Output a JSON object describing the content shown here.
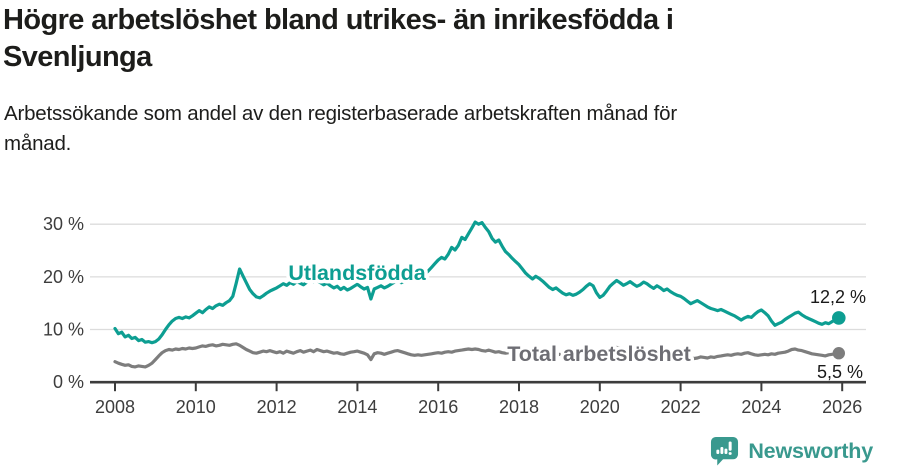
{
  "header": {
    "title": "Högre arbetslöshet bland utrikes- än inrikesfödda i Svenljunga",
    "title_lines": [
      "Högre arbetslöshet bland utrikes- än inrikesfödda i",
      "Svenljunga"
    ],
    "subtitle": "Arbetssökande som andel av den registerbaserade arbetskraften månad för månad.",
    "subtitle_lines": [
      "Arbetssökande som andel av den registerbaserade arbetskraften månad för",
      "månad."
    ]
  },
  "chart_data": {
    "type": "line",
    "title": "Högre arbetslöshet bland utrikes- än inrikesfödda i Svenljunga",
    "subtitle": "Arbetssökande som andel av den registerbaserade arbetskraften månad för månad.",
    "xlabel": "",
    "ylabel": "",
    "x_start_year": 2008,
    "points_per_year": 12,
    "x_tick_labels": [
      "2008",
      "2010",
      "2012",
      "2014",
      "2016",
      "2018",
      "2020",
      "2022",
      "2024",
      "2026"
    ],
    "y_ticks": [
      {
        "value": 0,
        "label": "0 %"
      },
      {
        "value": 10,
        "label": "10 %"
      },
      {
        "value": 20,
        "label": "20 %"
      },
      {
        "value": 30,
        "label": "30 %"
      }
    ],
    "ylim": [
      0,
      32
    ],
    "grid": "horizontal",
    "legend_position": "inline-labels",
    "axis_color": "#3c3c3c",
    "grid_color": "#dcdcdc",
    "tick_label_color": "#3d3d3d",
    "end_label_color": "#1a1a1a",
    "series": [
      {
        "name": "Utlandsfödda",
        "color": "#0d9e92",
        "end_label": "12,2 %",
        "end_value": 12.2,
        "values": [
          10.2,
          9.2,
          9.5,
          8.6,
          8.9,
          8.3,
          8.5,
          7.9,
          8.1,
          7.6,
          7.7,
          7.5,
          7.7,
          8.2,
          9.0,
          10.0,
          10.9,
          11.6,
          12.1,
          12.3,
          12.1,
          12.4,
          12.2,
          12.6,
          13.1,
          13.6,
          13.2,
          13.8,
          14.3,
          14.0,
          14.5,
          14.8,
          14.6,
          15.1,
          15.5,
          16.3,
          18.8,
          21.5,
          20.2,
          18.9,
          17.6,
          16.8,
          16.2,
          16.0,
          16.4,
          16.9,
          17.3,
          17.6,
          17.9,
          18.3,
          18.7,
          18.4,
          18.9,
          18.6,
          19.1,
          18.8,
          18.5,
          19.0,
          19.3,
          19.0,
          19.3,
          18.9,
          18.5,
          18.8,
          18.3,
          17.9,
          18.2,
          17.6,
          18.0,
          17.5,
          17.8,
          18.2,
          18.6,
          18.1,
          17.7,
          18.0,
          15.8,
          17.7,
          18.0,
          18.3,
          17.9,
          18.2,
          18.6,
          19.0,
          19.3,
          18.9,
          19.2,
          19.6,
          20.0,
          19.7,
          20.3,
          20.8,
          20.5,
          21.1,
          21.8,
          22.5,
          23.2,
          23.7,
          23.4,
          24.3,
          25.6,
          25.1,
          26.0,
          27.5,
          27.1,
          28.2,
          29.3,
          30.4,
          30.0,
          30.3,
          29.4,
          28.6,
          27.3,
          26.6,
          27.0,
          25.8,
          24.8,
          24.2,
          23.5,
          22.9,
          22.3,
          21.5,
          20.7,
          20.1,
          19.6,
          20.1,
          19.7,
          19.2,
          18.6,
          18.0,
          17.6,
          17.9,
          17.4,
          16.9,
          16.6,
          16.8,
          16.5,
          16.7,
          17.1,
          17.6,
          18.2,
          18.7,
          18.3,
          17.0,
          16.1,
          16.5,
          17.3,
          18.2,
          18.8,
          19.3,
          18.9,
          18.4,
          18.7,
          19.1,
          18.6,
          18.2,
          18.5,
          19.0,
          18.7,
          18.2,
          17.8,
          18.3,
          17.9,
          17.4,
          17.7,
          17.2,
          16.8,
          16.5,
          16.3,
          15.9,
          15.4,
          14.9,
          15.2,
          15.5,
          15.1,
          14.7,
          14.3,
          14.0,
          13.8,
          13.6,
          13.8,
          13.5,
          13.2,
          12.9,
          12.6,
          12.2,
          11.8,
          12.2,
          12.5,
          12.3,
          12.9,
          13.4,
          13.7,
          13.2,
          12.6,
          11.6,
          10.8,
          11.1,
          11.4,
          11.9,
          12.3,
          12.7,
          13.1,
          13.3,
          12.8,
          12.4,
          12.1,
          11.8,
          11.5,
          11.2,
          11.0,
          11.3,
          11.1,
          11.5,
          11.8,
          12.2
        ]
      },
      {
        "name": "Total arbetslöshet",
        "color": "#7d7d7d",
        "label_color": "#6e6e74",
        "end_label": "5,5 %",
        "end_value": 5.5,
        "values": [
          3.9,
          3.6,
          3.4,
          3.2,
          3.3,
          3.0,
          2.9,
          3.1,
          3.0,
          2.9,
          3.2,
          3.6,
          4.3,
          5.0,
          5.6,
          6.0,
          6.2,
          6.1,
          6.3,
          6.2,
          6.4,
          6.3,
          6.5,
          6.4,
          6.5,
          6.7,
          6.9,
          6.8,
          7.0,
          7.1,
          6.9,
          7.0,
          7.2,
          7.1,
          7.0,
          7.2,
          7.3,
          7.0,
          6.6,
          6.2,
          5.9,
          5.6,
          5.5,
          5.7,
          5.9,
          5.8,
          6.0,
          5.8,
          5.6,
          5.8,
          5.5,
          5.9,
          5.7,
          5.5,
          5.8,
          6.0,
          5.7,
          5.9,
          6.1,
          5.8,
          6.2,
          6.0,
          5.8,
          5.9,
          5.7,
          5.5,
          5.6,
          5.4,
          5.3,
          5.5,
          5.7,
          5.8,
          5.9,
          5.7,
          5.5,
          5.2,
          4.3,
          5.4,
          5.6,
          5.5,
          5.3,
          5.5,
          5.7,
          5.9,
          6.0,
          5.8,
          5.6,
          5.4,
          5.2,
          5.1,
          5.2,
          5.1,
          5.2,
          5.3,
          5.4,
          5.5,
          5.6,
          5.5,
          5.7,
          5.8,
          5.7,
          5.9,
          6.0,
          6.1,
          6.2,
          6.3,
          6.2,
          6.3,
          6.2,
          6.0,
          5.9,
          6.1,
          5.9,
          5.7,
          5.8,
          5.6,
          5.5,
          5.6,
          5.8,
          5.7,
          5.6,
          5.5,
          5.3,
          5.4,
          5.2,
          5.1,
          5.2,
          5.0,
          4.9,
          5.1,
          5.2,
          5.1,
          5.3,
          5.2,
          5.0,
          5.1,
          4.9,
          5.0,
          5.2,
          5.1,
          5.3,
          5.4,
          5.2,
          5.1,
          5.0,
          5.2,
          5.6,
          6.1,
          6.4,
          6.6,
          6.5,
          6.3,
          6.2,
          6.0,
          5.9,
          6.0,
          6.1,
          5.9,
          5.7,
          5.5,
          5.3,
          5.4,
          5.2,
          5.0,
          4.9,
          5.0,
          4.8,
          4.9,
          4.8,
          4.7,
          4.6,
          4.7,
          4.5,
          4.6,
          4.8,
          4.7,
          4.6,
          4.8,
          4.7,
          4.9,
          5.0,
          5.1,
          5.2,
          5.1,
          5.3,
          5.4,
          5.3,
          5.5,
          5.6,
          5.4,
          5.2,
          5.1,
          5.2,
          5.3,
          5.2,
          5.4,
          5.3,
          5.5,
          5.6,
          5.7,
          5.9,
          6.2,
          6.3,
          6.1,
          6.0,
          5.8,
          5.6,
          5.4,
          5.3,
          5.2,
          5.1,
          5.0,
          5.2,
          5.3,
          5.4,
          5.5
        ]
      }
    ]
  },
  "footer": {
    "brand": "Newsworthy",
    "brand_color": "#39998e"
  }
}
